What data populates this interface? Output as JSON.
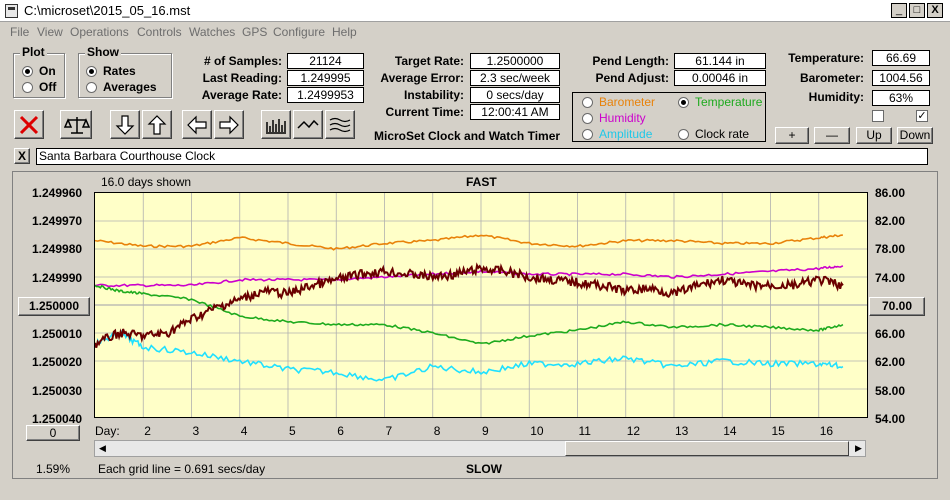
{
  "window": {
    "title": "C:\\microset\\2015_05_16.mst",
    "min": "_",
    "max": "□",
    "close": "X"
  },
  "menu": [
    "File",
    "View",
    "Operations",
    "Controls",
    "Watches",
    "GPS",
    "Configure",
    "Help"
  ],
  "plot_group": {
    "title": "Plot",
    "on": "On",
    "off": "Off",
    "selected": "On"
  },
  "show_group": {
    "title": "Show",
    "rates": "Rates",
    "averages": "Averages",
    "selected": "Rates"
  },
  "stats": {
    "samples_label": "# of Samples:",
    "samples": "21124",
    "last_label": "Last Reading:",
    "last": "1.249995",
    "avg_rate_label": "Average Rate:",
    "avg_rate": "1.2499953"
  },
  "rates": {
    "target_label": "Target Rate:",
    "target": "1.2500000",
    "avg_error_label": "Average Error:",
    "avg_error": "2.3 sec/week",
    "instability_label": "Instability:",
    "instability": "0 secs/day",
    "time_label": "Current Time:",
    "time": "12:00:41 AM",
    "app_caption": "MicroSet Clock and Watch Timer"
  },
  "pend": {
    "length_label": "Pend Length:",
    "length": "61.144 in",
    "adjust_label": "Pend Adjust:",
    "adjust": "0.00046 in"
  },
  "series_select": {
    "barometer": "Barometer",
    "temperature": "Temperature",
    "humidity": "Humidity",
    "amplitude": "Amplitude",
    "clock_rate": "Clock rate",
    "selected": "Temperature"
  },
  "env": {
    "temp_label": "Temperature:",
    "temp": "66.69",
    "baro_label": "Barometer:",
    "baro": "1004.56",
    "hum_label": "Humidity:",
    "hum": "63%",
    "check1": false,
    "check2": true
  },
  "scale_buttons": {
    "plus": "+",
    "minus": "—",
    "up": "Up",
    "down": "Down"
  },
  "clock_name": "Santa Barbara Courthouse Clock",
  "clear_btn": "X",
  "chart_labels": {
    "days_shown": "16.0 days shown",
    "fast": "FAST",
    "slow": "SLOW",
    "grid_note": "Each grid line = 0.691 secs/day",
    "pct": "1.59%",
    "day_prefix": "Day:",
    "left_value_btn": "1.250000",
    "right_value_btn": "70.00",
    "scroll_value": "0"
  },
  "colors": {
    "barometer": "#e8820a",
    "temperature": "#1eaa1e",
    "humidity": "#cc00cc",
    "amplitude": "#20e0ff",
    "clock_rate": "#6a0000",
    "plot_bg": "#ffffc8"
  },
  "chart_data": {
    "type": "line",
    "left_axis": {
      "ticks": [
        "1.249960",
        "1.249970",
        "1.249980",
        "1.249990",
        "1.250000",
        "1.250010",
        "1.250020",
        "1.250030",
        "1.250040"
      ],
      "range": [
        1.24996,
        1.25004
      ],
      "inverted": true
    },
    "right_axis": {
      "ticks": [
        "86.00",
        "82.00",
        "78.00",
        "74.00",
        "70.00",
        "66.00",
        "62.00",
        "58.00",
        "54.00"
      ],
      "range": [
        54,
        86
      ]
    },
    "x_ticks": [
      "2",
      "3",
      "4",
      "5",
      "6",
      "7",
      "8",
      "9",
      "10",
      "11",
      "12",
      "13",
      "14",
      "15",
      "16"
    ],
    "x_range": [
      1,
      17
    ],
    "grid": true,
    "series": [
      {
        "name": "Barometer",
        "color": "#e8820a",
        "x": [
          1.0,
          2.0,
          3.0,
          4.0,
          5.0,
          6.0,
          7.0,
          8.0,
          9.0,
          10.0,
          11.0,
          12.0,
          13.0,
          14.0,
          15.0,
          16.0,
          16.5
        ],
        "y": [
          1.249977,
          1.249979,
          1.249979,
          1.249976,
          1.249978,
          1.24998,
          1.249978,
          1.249977,
          1.249975,
          1.249978,
          1.249979,
          1.249977,
          1.249977,
          1.249978,
          1.249978,
          1.249976,
          1.249975
        ]
      },
      {
        "name": "Humidity",
        "color": "#cc00cc",
        "x": [
          1.0,
          2.0,
          3.0,
          4.0,
          5.0,
          6.0,
          7.0,
          8.0,
          9.0,
          10.0,
          11.0,
          12.0,
          13.0,
          14.0,
          15.0,
          16.0,
          16.5
        ],
        "y": [
          1.249993,
          1.249993,
          1.249993,
          1.249991,
          1.249991,
          1.249991,
          1.24999,
          1.249989,
          1.249988,
          1.249989,
          1.249989,
          1.249989,
          1.24999,
          1.249989,
          1.249988,
          1.249987,
          1.249986
        ]
      },
      {
        "name": "Temperature",
        "color": "#1eaa1e",
        "x": [
          1.0,
          1.5,
          2.0,
          3.0,
          4.0,
          5.0,
          6.0,
          7.0,
          8.0,
          9.0,
          10.0,
          11.0,
          12.0,
          13.0,
          14.0,
          15.0,
          16.0,
          16.5
        ],
        "y": [
          1.249993,
          1.249995,
          1.249996,
          1.249998,
          1.250004,
          1.250006,
          1.250007,
          1.250007,
          1.25001,
          1.250014,
          1.250011,
          1.250009,
          1.250006,
          1.250008,
          1.250007,
          1.250008,
          1.250009,
          1.250007
        ]
      },
      {
        "name": "Amplitude",
        "color": "#20e0ff",
        "x": [
          1.0,
          1.5,
          2.0,
          3.0,
          4.0,
          5.0,
          6.0,
          7.0,
          8.0,
          9.0,
          10.0,
          11.0,
          12.0,
          13.0,
          14.0,
          15.0,
          16.0,
          16.5
        ],
        "y": [
          1.250014,
          1.25001,
          1.250015,
          1.250017,
          1.25002,
          1.250023,
          1.250024,
          1.250027,
          1.250022,
          1.250024,
          1.250021,
          1.250021,
          1.250019,
          1.250022,
          1.25002,
          1.250021,
          1.250021,
          1.250022
        ]
      },
      {
        "name": "Clock rate",
        "color": "#6a0000",
        "x": [
          1.0,
          1.5,
          2.0,
          2.5,
          3.0,
          3.5,
          4.0,
          4.5,
          5.0,
          5.5,
          6.0,
          6.5,
          7.0,
          7.5,
          8.0,
          8.5,
          9.0,
          9.5,
          10.0,
          10.5,
          11.0,
          11.5,
          12.0,
          12.5,
          13.0,
          13.5,
          14.0,
          14.5,
          15.0,
          15.5,
          16.0,
          16.5
        ],
        "y": [
          1.250014,
          1.25001,
          1.250011,
          1.25001,
          1.250005,
          1.250001,
          1.249998,
          1.249995,
          1.249996,
          1.249993,
          1.249991,
          1.249989,
          1.249988,
          1.249989,
          1.24999,
          1.249989,
          1.249987,
          1.249988,
          1.24999,
          1.249991,
          1.249992,
          1.249993,
          1.249995,
          1.249994,
          1.249996,
          1.249993,
          1.249991,
          1.249993,
          1.249993,
          1.249993,
          1.249991,
          1.249993
        ]
      }
    ]
  }
}
